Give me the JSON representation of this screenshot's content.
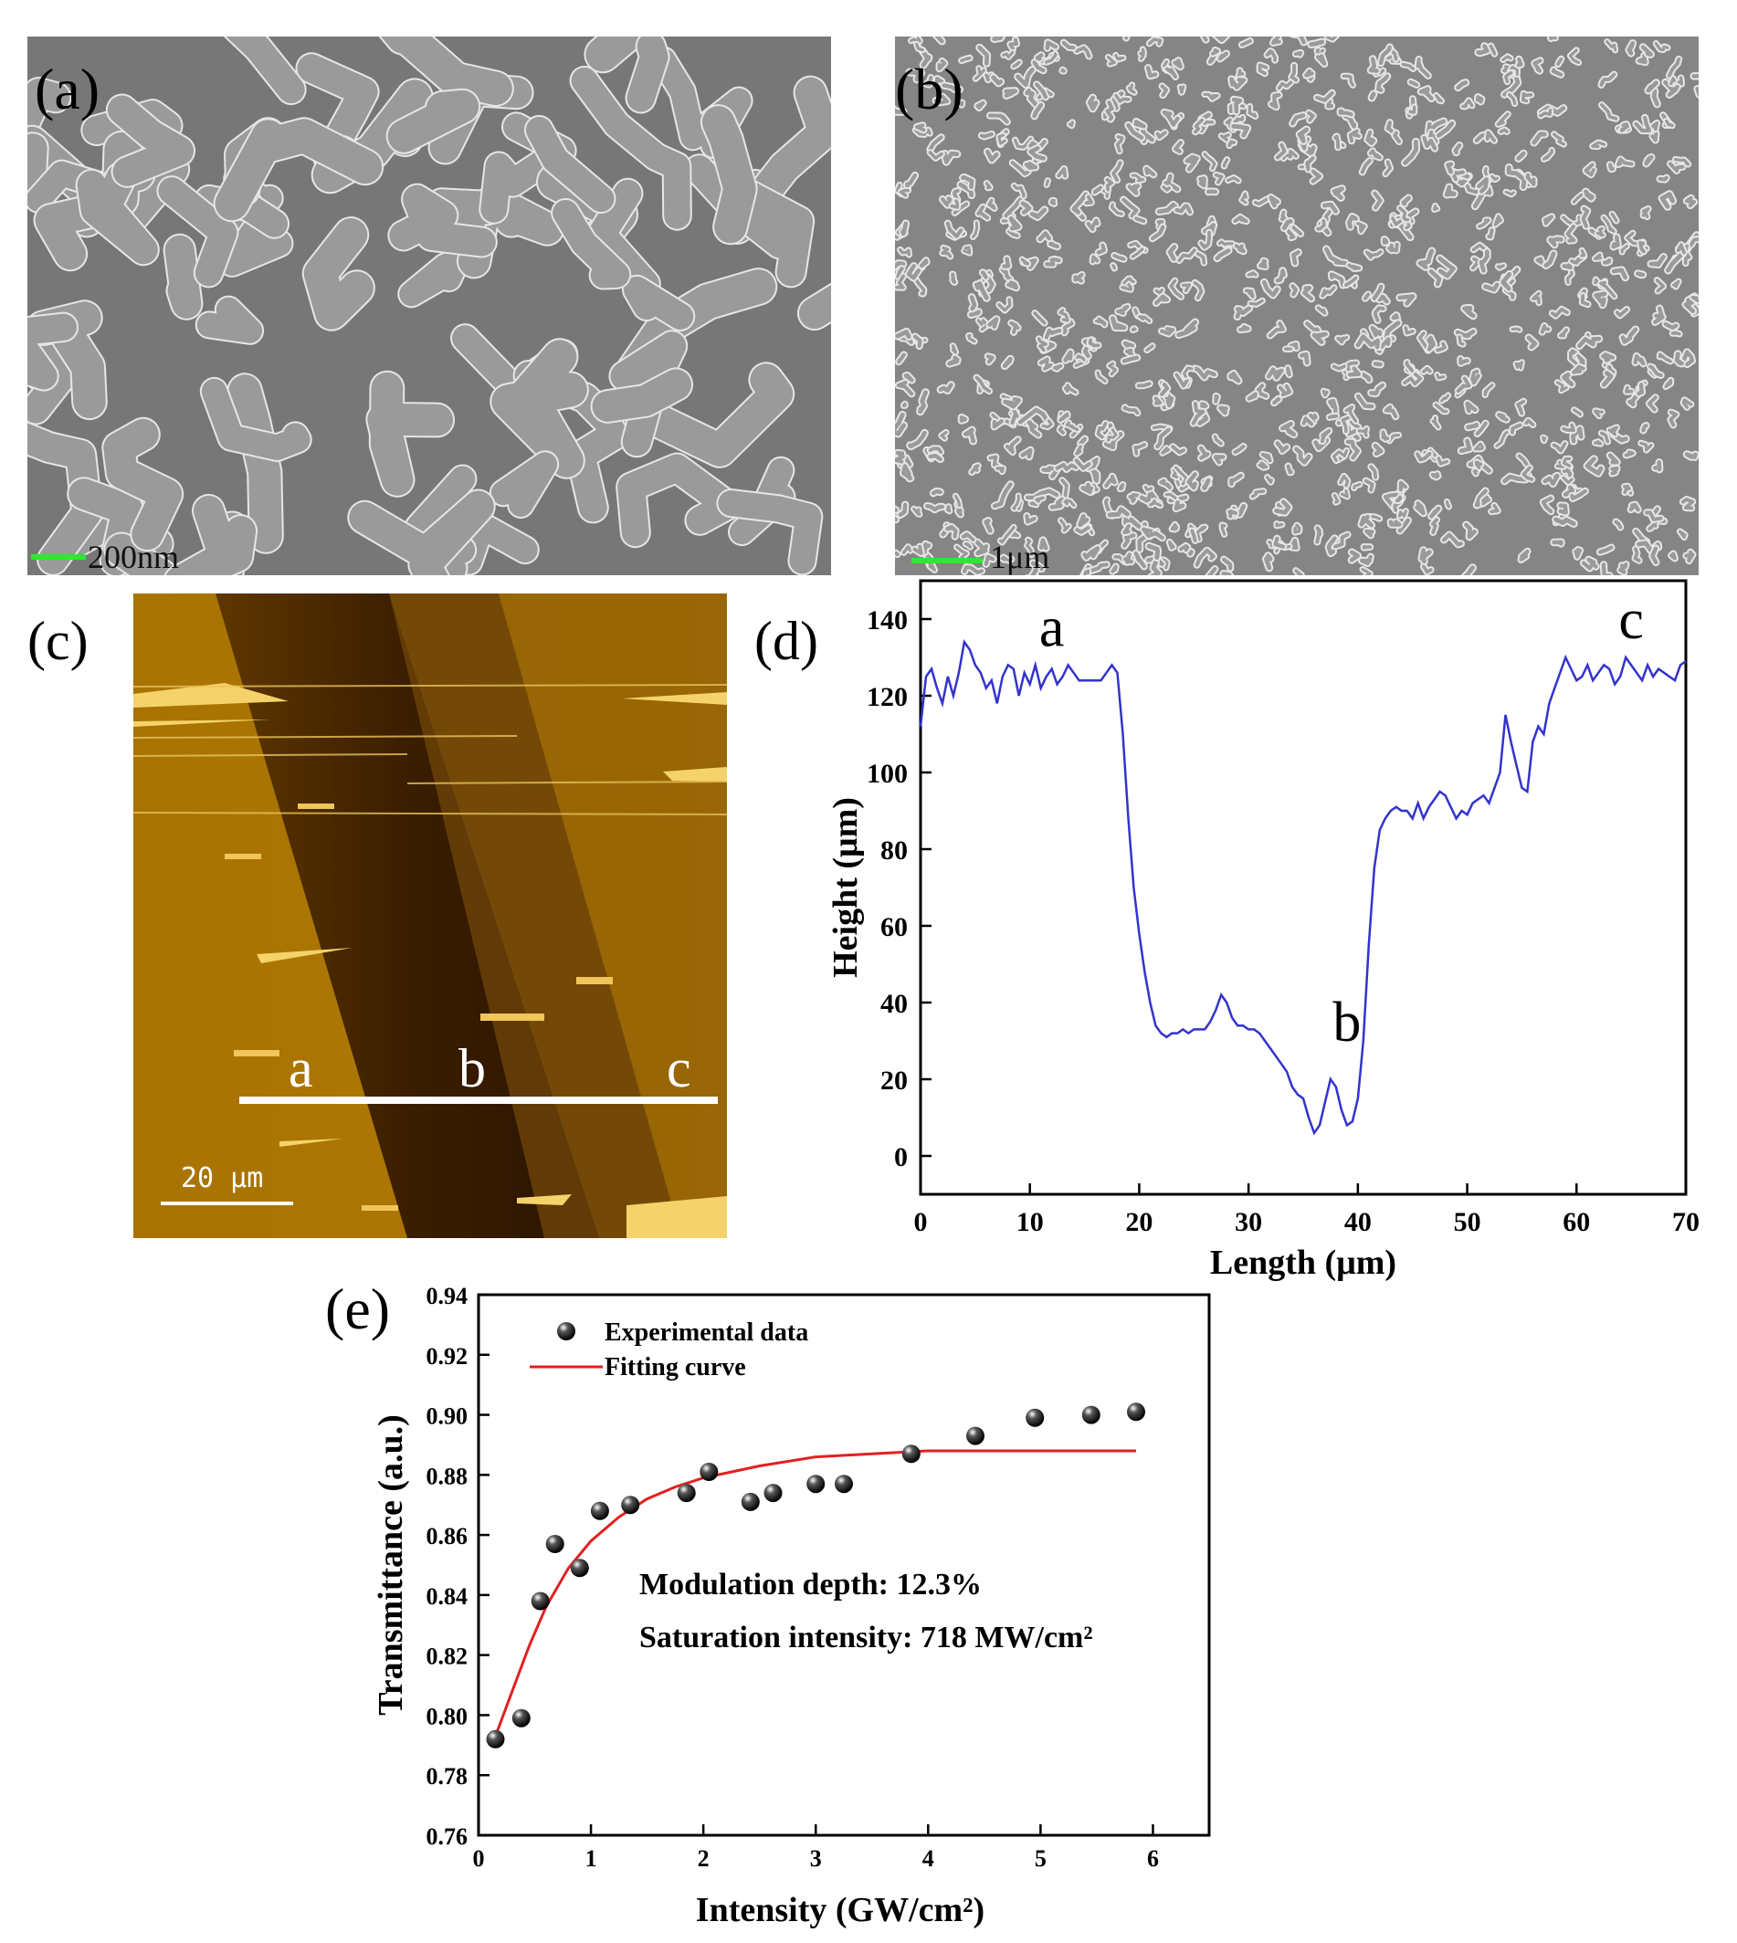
{
  "panels": {
    "a": {
      "label": "(a)",
      "scale_bar": "200nm"
    },
    "b": {
      "label": "(b)",
      "scale_bar": "1μm"
    },
    "c": {
      "label": "(c)",
      "scale_bar": "20 μm",
      "line_points": [
        "a",
        "b",
        "c"
      ]
    },
    "d": {
      "label": "(d)"
    },
    "e": {
      "label": "(e)"
    }
  },
  "chart_data": [
    {
      "panel": "d",
      "type": "line",
      "xlabel": "Length (μm)",
      "ylabel": "Height (μm)",
      "xlim": [
        0,
        70
      ],
      "ylim": [
        -10,
        150
      ],
      "xticks": [
        0,
        10,
        20,
        30,
        40,
        50,
        60,
        70
      ],
      "yticks": [
        0,
        20,
        40,
        60,
        80,
        100,
        120,
        140
      ],
      "annotations": [
        {
          "text": "a",
          "x": 12,
          "y": 133
        },
        {
          "text": "b",
          "x": 39,
          "y": 30
        },
        {
          "text": "c",
          "x": 65,
          "y": 135
        }
      ],
      "color": "#3333cc",
      "series": [
        {
          "x": [
            0,
            0.5,
            1,
            1.5,
            2,
            2.5,
            3,
            3.5,
            4,
            4.5,
            5,
            5.5,
            6,
            6.5,
            7,
            7.5,
            8,
            8.5,
            9,
            9.5,
            10,
            10.5,
            11,
            11.5,
            12,
            12.5,
            13,
            13.5,
            14,
            14.5,
            15,
            15.5,
            16,
            16.5,
            17,
            17.5,
            18,
            18.5,
            19,
            19.5,
            20,
            20.5,
            21,
            21.5,
            22,
            22.5,
            23,
            23.5,
            24,
            24.5,
            25,
            25.5,
            26,
            26.5,
            27,
            27.5,
            28,
            28.5,
            29,
            29.5,
            30,
            30.5,
            31,
            31.5,
            32,
            32.5,
            33,
            33.5,
            34,
            34.5,
            35,
            35.5,
            36,
            36.5,
            37,
            37.5,
            38,
            38.5,
            39,
            39.5,
            40,
            40.5,
            41,
            41.5,
            42,
            42.5,
            43,
            43.5,
            44,
            44.5,
            45,
            45.5,
            46,
            46.5,
            47,
            47.5,
            48,
            48.5,
            49,
            49.5,
            50,
            50.5,
            51,
            51.5,
            52,
            52.5,
            53,
            53.5,
            54,
            54.5,
            55,
            55.5,
            56,
            56.5,
            57,
            57.5,
            58,
            58.5,
            59,
            59.5,
            60,
            60.5,
            61,
            61.5,
            62,
            62.5,
            63,
            63.5,
            64,
            64.5,
            65,
            65.5,
            66,
            66.5,
            67,
            67.5,
            68,
            68.5,
            69,
            69.5,
            70
          ],
          "y": [
            112,
            125,
            127,
            122,
            118,
            125,
            120,
            126,
            134,
            132,
            128,
            126,
            122,
            124,
            118,
            125,
            128,
            127,
            120,
            126,
            123,
            128,
            122,
            125,
            127,
            123,
            125,
            128,
            126,
            124,
            124,
            124,
            124,
            124,
            126,
            128,
            126,
            110,
            88,
            70,
            58,
            48,
            40,
            34,
            32,
            31,
            32,
            32,
            33,
            32,
            33,
            33,
            33,
            35,
            38,
            42,
            40,
            36,
            34,
            34,
            33,
            33,
            32,
            30,
            28,
            26,
            24,
            22,
            18,
            16,
            15,
            10,
            6,
            8,
            14,
            20,
            18,
            12,
            8,
            9,
            15,
            30,
            55,
            75,
            85,
            88,
            90,
            91,
            90,
            90,
            88,
            92,
            88,
            91,
            93,
            95,
            94,
            91,
            88,
            90,
            89,
            92,
            93,
            94,
            92,
            96,
            100,
            115,
            108,
            102,
            96,
            95,
            108,
            112,
            110,
            118,
            122,
            126,
            130,
            127,
            124,
            125,
            128,
            124,
            126,
            128,
            127,
            123,
            125,
            130,
            128,
            126,
            124,
            128,
            125,
            127,
            126,
            125,
            124,
            128,
            129
          ]
        }
      ]
    },
    {
      "panel": "e",
      "type": "scatter",
      "xlabel": "Intensity (GW/cm²)",
      "ylabel": "Transmittance (a.u.)",
      "xlim": [
        0,
        6.5
      ],
      "ylim": [
        0.76,
        0.94
      ],
      "xticks": [
        0,
        1,
        2,
        3,
        4,
        5,
        6
      ],
      "yticks": [
        0.76,
        0.78,
        0.8,
        0.82,
        0.84,
        0.86,
        0.88,
        0.9,
        0.92,
        0.94
      ],
      "legend": {
        "placement": "top-left",
        "entries": [
          "Experimental data",
          "Fitting curve"
        ]
      },
      "annotations": [
        "Modulation depth: 12.3%",
        "Saturation intensity: 718 MW/cm²"
      ],
      "series": [
        {
          "name": "Experimental data",
          "x": [
            0.15,
            0.38,
            0.55,
            0.68,
            0.9,
            1.08,
            1.35,
            1.85,
            2.05,
            2.42,
            2.62,
            3.0,
            3.25,
            3.85,
            4.42,
            4.95,
            5.45,
            5.85
          ],
          "y": [
            0.792,
            0.799,
            0.838,
            0.857,
            0.849,
            0.868,
            0.87,
            0.874,
            0.881,
            0.871,
            0.874,
            0.877,
            0.877,
            0.887,
            0.893,
            0.899,
            0.9,
            0.901
          ]
        },
        {
          "name": "Fitting curve",
          "x": [
            0.15,
            0.3,
            0.45,
            0.6,
            0.8,
            1.0,
            1.25,
            1.5,
            1.75,
            2.0,
            2.5,
            3.0,
            3.5,
            4.0,
            4.5,
            5.0,
            5.5,
            5.85
          ],
          "y": [
            0.793,
            0.808,
            0.823,
            0.836,
            0.849,
            0.858,
            0.866,
            0.872,
            0.876,
            0.879,
            0.883,
            0.886,
            0.887,
            0.888,
            0.888,
            0.888,
            0.888,
            0.888
          ]
        }
      ]
    }
  ]
}
